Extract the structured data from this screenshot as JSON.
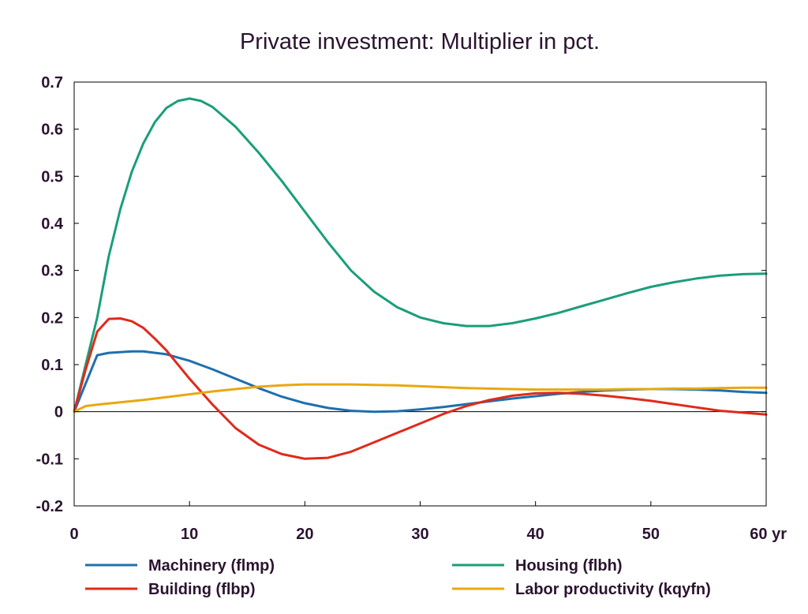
{
  "chart_data": {
    "type": "line",
    "title": "Private investment: Multiplier in pct.",
    "xlabel": "",
    "ylabel": "",
    "x_unit": "yr",
    "xlim": [
      0,
      60
    ],
    "ylim": [
      -0.2,
      0.7
    ],
    "xticks": [
      0,
      10,
      20,
      30,
      40,
      50,
      60
    ],
    "xtick_labels": [
      "0",
      "10",
      "20",
      "30",
      "40",
      "50",
      "60 yr"
    ],
    "yticks": [
      -0.2,
      -0.1,
      0,
      0.1,
      0.2,
      0.3,
      0.4,
      0.5,
      0.6,
      0.7
    ],
    "ytick_labels": [
      "-0.2",
      "-0.1",
      "0",
      "0.1",
      "0.2",
      "0.3",
      "0.4",
      "0.5",
      "0.6",
      "0.7"
    ],
    "grid": false,
    "zero_line": true,
    "legend_position": "bottom",
    "series": [
      {
        "name": "Machinery (flmp)",
        "color": "#1f6fad",
        "x": [
          0,
          2,
          3,
          5,
          6,
          8,
          10,
          12,
          14,
          16,
          18,
          20,
          22,
          24,
          26,
          28,
          30,
          32,
          34,
          36,
          38,
          40,
          42,
          44,
          46,
          48,
          50,
          52,
          54,
          56,
          58,
          60
        ],
        "y": [
          0,
          0.12,
          0.125,
          0.128,
          0.128,
          0.122,
          0.108,
          0.09,
          0.07,
          0.05,
          0.032,
          0.018,
          0.008,
          0.002,
          0.0,
          0.001,
          0.005,
          0.01,
          0.016,
          0.022,
          0.028,
          0.033,
          0.038,
          0.042,
          0.045,
          0.047,
          0.048,
          0.048,
          0.047,
          0.045,
          0.042,
          0.04
        ]
      },
      {
        "name": "Housing (flbh)",
        "color": "#1a9e7a",
        "x": [
          0,
          1,
          2,
          3,
          4,
          5,
          6,
          7,
          8,
          9,
          10,
          11,
          12,
          14,
          16,
          18,
          20,
          22,
          24,
          26,
          28,
          30,
          32,
          34,
          36,
          38,
          40,
          42,
          44,
          46,
          48,
          50,
          52,
          54,
          56,
          58,
          60
        ],
        "y": [
          0,
          0.1,
          0.2,
          0.33,
          0.43,
          0.51,
          0.57,
          0.615,
          0.645,
          0.66,
          0.665,
          0.66,
          0.647,
          0.605,
          0.55,
          0.49,
          0.425,
          0.36,
          0.3,
          0.255,
          0.222,
          0.2,
          0.188,
          0.182,
          0.182,
          0.188,
          0.198,
          0.21,
          0.224,
          0.238,
          0.252,
          0.265,
          0.275,
          0.283,
          0.289,
          0.292,
          0.293
        ]
      },
      {
        "name": "Building (flbp)",
        "color": "#e02a1a",
        "x": [
          0,
          1,
          2,
          3,
          4,
          5,
          6,
          7,
          8,
          10,
          12,
          14,
          16,
          18,
          20,
          22,
          24,
          26,
          28,
          30,
          32,
          34,
          36,
          38,
          40,
          42,
          44,
          46,
          48,
          50,
          52,
          54,
          56,
          58,
          60
        ],
        "y": [
          0,
          0.09,
          0.17,
          0.197,
          0.198,
          0.192,
          0.178,
          0.155,
          0.13,
          0.07,
          0.015,
          -0.035,
          -0.07,
          -0.09,
          -0.1,
          -0.098,
          -0.085,
          -0.065,
          -0.045,
          -0.025,
          -0.005,
          0.012,
          0.025,
          0.034,
          0.039,
          0.04,
          0.038,
          0.034,
          0.029,
          0.023,
          0.016,
          0.009,
          0.002,
          -0.002,
          -0.006
        ]
      },
      {
        "name": "Labor productivity (kqyfn)",
        "color": "#e8a812",
        "x": [
          0,
          1,
          2,
          4,
          6,
          8,
          10,
          12,
          14,
          16,
          18,
          20,
          22,
          24,
          26,
          28,
          30,
          32,
          34,
          36,
          38,
          40,
          42,
          44,
          46,
          48,
          50,
          52,
          54,
          56,
          58,
          60
        ],
        "y": [
          0,
          0.012,
          0.015,
          0.02,
          0.025,
          0.031,
          0.037,
          0.043,
          0.048,
          0.053,
          0.056,
          0.058,
          0.058,
          0.058,
          0.057,
          0.056,
          0.054,
          0.052,
          0.05,
          0.049,
          0.048,
          0.047,
          0.047,
          0.047,
          0.047,
          0.048,
          0.048,
          0.049,
          0.049,
          0.05,
          0.051,
          0.051
        ]
      }
    ]
  }
}
